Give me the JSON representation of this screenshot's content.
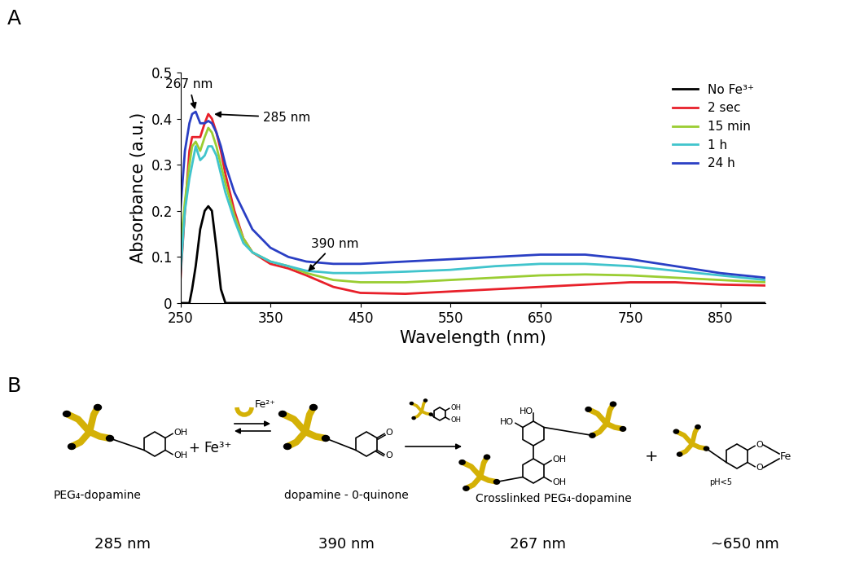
{
  "panel_labels": [
    "A",
    "B"
  ],
  "chart_data": {
    "type": "line",
    "x_label": "Wavelength (nm)",
    "y_label": "Absorbance (a.u.)",
    "xlim": [
      250,
      900
    ],
    "xticks": [
      250,
      350,
      450,
      550,
      650,
      750,
      850
    ],
    "ylim": [
      0,
      0.5
    ],
    "yticks": [
      0,
      0.1,
      0.2,
      0.3,
      0.4,
      0.5
    ],
    "grid": false,
    "legend": "upper right",
    "x": [
      250,
      255,
      260,
      263,
      267,
      272,
      277,
      281,
      285,
      290,
      295,
      300,
      310,
      320,
      330,
      350,
      370,
      390,
      420,
      450,
      500,
      550,
      600,
      650,
      700,
      750,
      800,
      850,
      900
    ],
    "series": [
      {
        "name": "No Fe³⁺",
        "color": "#000000",
        "values": [
          0,
          0,
          0,
          0.03,
          0.08,
          0.16,
          0.2,
          0.21,
          0.2,
          0.12,
          0.03,
          0,
          0,
          0,
          0,
          0,
          0,
          0,
          0,
          0,
          0,
          0,
          0,
          0,
          0,
          0,
          0,
          0,
          0
        ]
      },
      {
        "name": "2 sec",
        "color": "#e8202a",
        "values": [
          0.05,
          0.2,
          0.33,
          0.36,
          0.36,
          0.36,
          0.39,
          0.41,
          0.4,
          0.37,
          0.33,
          0.28,
          0.2,
          0.14,
          0.11,
          0.085,
          0.075,
          0.06,
          0.035,
          0.022,
          0.02,
          0.025,
          0.03,
          0.035,
          0.04,
          0.045,
          0.045,
          0.04,
          0.038
        ]
      },
      {
        "name": "15 min",
        "color": "#9acd32",
        "values": [
          0.12,
          0.22,
          0.3,
          0.34,
          0.35,
          0.33,
          0.36,
          0.38,
          0.37,
          0.34,
          0.3,
          0.26,
          0.19,
          0.14,
          0.11,
          0.09,
          0.08,
          0.065,
          0.05,
          0.045,
          0.045,
          0.05,
          0.055,
          0.06,
          0.062,
          0.06,
          0.055,
          0.05,
          0.045
        ]
      },
      {
        "name": "1 h",
        "color": "#40c4cc",
        "values": [
          0.06,
          0.2,
          0.27,
          0.3,
          0.34,
          0.31,
          0.32,
          0.34,
          0.34,
          0.32,
          0.28,
          0.24,
          0.18,
          0.13,
          0.11,
          0.09,
          0.08,
          0.07,
          0.065,
          0.065,
          0.068,
          0.072,
          0.08,
          0.085,
          0.085,
          0.08,
          0.07,
          0.06,
          0.05
        ]
      },
      {
        "name": "24 h",
        "color": "#2a3fc4",
        "values": [
          0.2,
          0.33,
          0.39,
          0.41,
          0.415,
          0.39,
          0.39,
          0.395,
          0.39,
          0.37,
          0.34,
          0.3,
          0.24,
          0.2,
          0.16,
          0.12,
          0.1,
          0.09,
          0.085,
          0.085,
          0.09,
          0.095,
          0.1,
          0.105,
          0.105,
          0.095,
          0.08,
          0.065,
          0.055
        ]
      }
    ],
    "annotations": [
      {
        "text": "267 nm",
        "x": 267,
        "y": 0.415
      },
      {
        "text": "285 nm",
        "x": 285,
        "y": 0.41
      },
      {
        "text": "390 nm",
        "x": 390,
        "y": 0.065
      }
    ]
  },
  "scheme": {
    "plus": "+",
    "reagent": "Fe³⁺",
    "byproduct": "Fe²⁺",
    "second_reactant_groups": [
      "OH",
      "OH"
    ],
    "steps": [
      {
        "label": "PEG₄-dopamine",
        "wavelength": "285 nm",
        "groups": [
          "OH",
          "OH"
        ]
      },
      {
        "label": "dopamine - 0-quinone",
        "wavelength": "390 nm",
        "groups": [
          "O",
          "O"
        ]
      },
      {
        "label": "Crosslinked PEG₄-dopamine",
        "wavelength": "267 nm",
        "groups": [
          "HO",
          "HO",
          "OH",
          "OH"
        ]
      },
      {
        "condition": "pH<5",
        "wavelength": "~650 nm",
        "groups": [
          "O",
          "O",
          "Fe"
        ]
      }
    ]
  }
}
